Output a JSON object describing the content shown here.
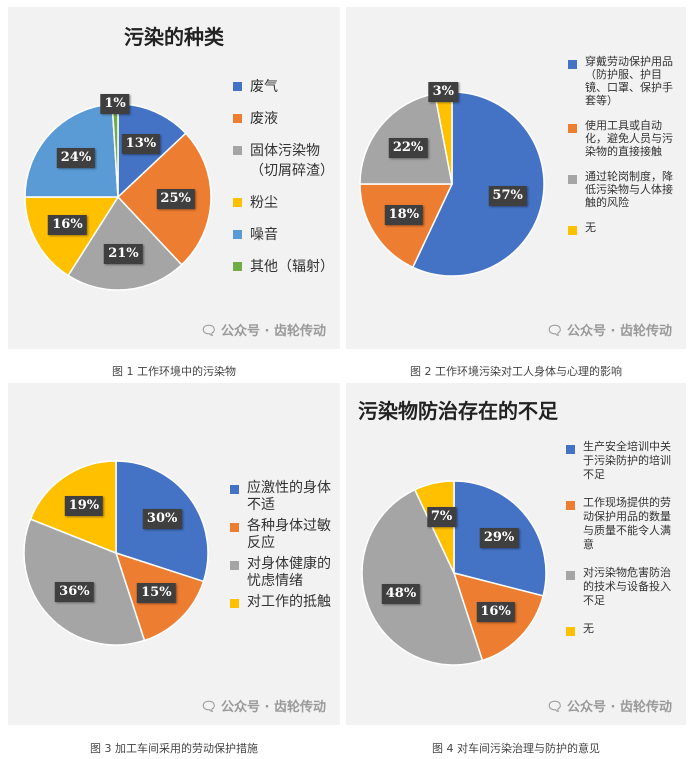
{
  "colors": {
    "blue": "#4472c4",
    "orange": "#ed7d31",
    "gray": "#a5a5a5",
    "yellow": "#ffc000",
    "lightblue": "#5b9bd5",
    "green": "#70ad47"
  },
  "watermark_text": "公众号 · 齿轮传动",
  "chart_data": [
    {
      "type": "pie",
      "title": "污染的种类",
      "caption": "图 1 工作环境中的污染物",
      "labels": [
        "废气",
        "废液",
        "固体污染物（切屑碎渣）",
        "粉尘",
        "噪音",
        "其他（辐射）"
      ],
      "values": [
        13,
        25,
        21,
        16,
        24,
        1
      ],
      "value_labels": [
        "13%",
        "25%",
        "21%",
        "16%",
        "24%",
        "1%"
      ],
      "colors": [
        "#4472c4",
        "#ed7d31",
        "#a5a5a5",
        "#ffc000",
        "#5b9bd5",
        "#70ad47"
      ],
      "legend_position": "right"
    },
    {
      "type": "pie",
      "title": "",
      "caption": "图 2 工作环境污染对工人身体与心理的影响",
      "labels": [
        "穿戴劳动保护用品（防护服、护目镜、口罩、保护手套等）",
        "使用工具或自动化，避免人员与污染物的直接接触",
        "通过轮岗制度，降低污染物与人体接触的风险",
        "无"
      ],
      "values": [
        57,
        18,
        22,
        3
      ],
      "value_labels": [
        "57%",
        "18%",
        "22%",
        "3%"
      ],
      "colors": [
        "#4472c4",
        "#ed7d31",
        "#a5a5a5",
        "#ffc000"
      ],
      "legend_position": "right"
    },
    {
      "type": "pie",
      "title": "",
      "caption": "图 3 加工车间采用的劳动保护措施",
      "labels": [
        "应激性的身体不适",
        "各种身体过敏反应",
        "对身体健康的忧虑情绪",
        "对工作的抵触"
      ],
      "values": [
        30,
        15,
        36,
        19
      ],
      "value_labels": [
        "30%",
        "15%",
        "36%",
        "19%"
      ],
      "colors": [
        "#4472c4",
        "#ed7d31",
        "#a5a5a5",
        "#ffc000"
      ],
      "legend_position": "right"
    },
    {
      "type": "pie",
      "title": "污染物防治存在的不足",
      "caption": "图 4 对车间污染治理与防护的意见",
      "labels": [
        "生产安全培训中关于污染防护的培训不足",
        "工作现场提供的劳动保护用品的数量与质量不能令人满意",
        "对污染物危害防治的技术与设备投入不足",
        "无"
      ],
      "values": [
        29,
        16,
        48,
        7
      ],
      "value_labels": [
        "29%",
        "16%",
        "48%",
        "7%"
      ],
      "colors": [
        "#4472c4",
        "#ed7d31",
        "#a5a5a5",
        "#ffc000"
      ],
      "legend_position": "right"
    }
  ]
}
